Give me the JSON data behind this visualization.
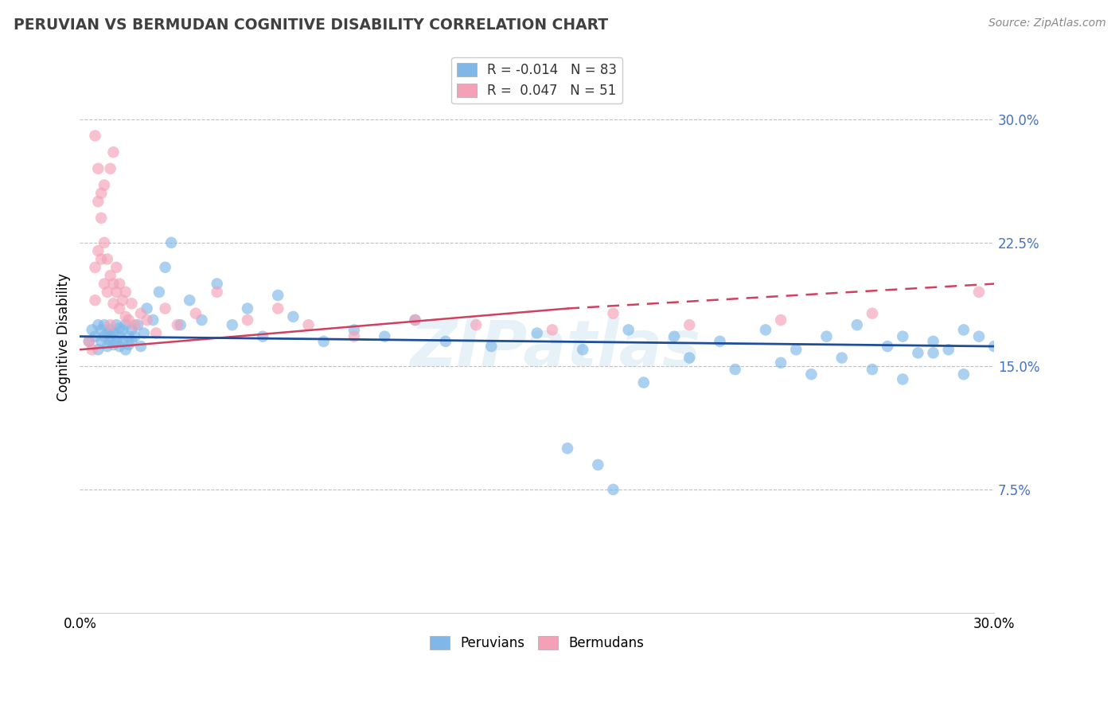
{
  "title": "PERUVIAN VS BERMUDAN COGNITIVE DISABILITY CORRELATION CHART",
  "source": "Source: ZipAtlas.com",
  "ylabel": "Cognitive Disability",
  "xlim": [
    0.0,
    0.3
  ],
  "ylim": [
    0.0,
    0.335
  ],
  "right_yticks": [
    0.075,
    0.15,
    0.225,
    0.3
  ],
  "right_yticklabels": [
    "7.5%",
    "15.0%",
    "22.5%",
    "30.0%"
  ],
  "legend_R1": "R = -0.014",
  "legend_N1": "N = 83",
  "legend_R2": "R =  0.047",
  "legend_N2": "N = 51",
  "blue_color": "#7fb8e8",
  "pink_color": "#f4a0b8",
  "blue_line_color": "#1f4e99",
  "pink_line_color": "#d04060",
  "watermark": "ZIPatlas",
  "peruvians_x": [
    0.003,
    0.004,
    0.005,
    0.006,
    0.006,
    0.007,
    0.007,
    0.008,
    0.008,
    0.009,
    0.009,
    0.01,
    0.01,
    0.01,
    0.011,
    0.011,
    0.012,
    0.012,
    0.013,
    0.013,
    0.013,
    0.014,
    0.014,
    0.015,
    0.015,
    0.016,
    0.016,
    0.017,
    0.017,
    0.018,
    0.019,
    0.02,
    0.021,
    0.022,
    0.024,
    0.026,
    0.028,
    0.03,
    0.033,
    0.036,
    0.04,
    0.045,
    0.05,
    0.055,
    0.06,
    0.065,
    0.07,
    0.08,
    0.09,
    0.1,
    0.11,
    0.12,
    0.135,
    0.15,
    0.165,
    0.18,
    0.195,
    0.21,
    0.225,
    0.235,
    0.245,
    0.255,
    0.265,
    0.27,
    0.275,
    0.28,
    0.285,
    0.29,
    0.295,
    0.3,
    0.16,
    0.17,
    0.175,
    0.185,
    0.2,
    0.215,
    0.23,
    0.24,
    0.25,
    0.26,
    0.27,
    0.28,
    0.29
  ],
  "peruvians_y": [
    0.165,
    0.172,
    0.168,
    0.175,
    0.16,
    0.172,
    0.165,
    0.168,
    0.175,
    0.162,
    0.17,
    0.165,
    0.172,
    0.168,
    0.163,
    0.17,
    0.165,
    0.175,
    0.162,
    0.168,
    0.173,
    0.165,
    0.172,
    0.16,
    0.175,
    0.163,
    0.168,
    0.165,
    0.172,
    0.168,
    0.175,
    0.162,
    0.17,
    0.185,
    0.178,
    0.195,
    0.21,
    0.225,
    0.175,
    0.19,
    0.178,
    0.2,
    0.175,
    0.185,
    0.168,
    0.193,
    0.18,
    0.165,
    0.172,
    0.168,
    0.178,
    0.165,
    0.162,
    0.17,
    0.16,
    0.172,
    0.168,
    0.165,
    0.172,
    0.16,
    0.168,
    0.175,
    0.162,
    0.168,
    0.158,
    0.165,
    0.16,
    0.172,
    0.168,
    0.162,
    0.1,
    0.09,
    0.075,
    0.14,
    0.155,
    0.148,
    0.152,
    0.145,
    0.155,
    0.148,
    0.142,
    0.158,
    0.145
  ],
  "bermudans_x": [
    0.003,
    0.004,
    0.005,
    0.005,
    0.006,
    0.006,
    0.007,
    0.007,
    0.008,
    0.008,
    0.009,
    0.009,
    0.01,
    0.01,
    0.011,
    0.011,
    0.012,
    0.012,
    0.013,
    0.013,
    0.014,
    0.015,
    0.015,
    0.016,
    0.017,
    0.018,
    0.02,
    0.022,
    0.025,
    0.028,
    0.032,
    0.038,
    0.045,
    0.055,
    0.065,
    0.075,
    0.09,
    0.11,
    0.13,
    0.155,
    0.175,
    0.2,
    0.23,
    0.26,
    0.295,
    0.01,
    0.011,
    0.008,
    0.007,
    0.006,
    0.005
  ],
  "bermudans_y": [
    0.165,
    0.16,
    0.19,
    0.21,
    0.22,
    0.25,
    0.215,
    0.24,
    0.2,
    0.225,
    0.195,
    0.215,
    0.205,
    0.175,
    0.188,
    0.2,
    0.195,
    0.21,
    0.185,
    0.2,
    0.19,
    0.18,
    0.195,
    0.178,
    0.188,
    0.175,
    0.182,
    0.178,
    0.17,
    0.185,
    0.175,
    0.182,
    0.195,
    0.178,
    0.185,
    0.175,
    0.168,
    0.178,
    0.175,
    0.172,
    0.182,
    0.175,
    0.178,
    0.182,
    0.195,
    0.27,
    0.28,
    0.26,
    0.255,
    0.27,
    0.29
  ]
}
